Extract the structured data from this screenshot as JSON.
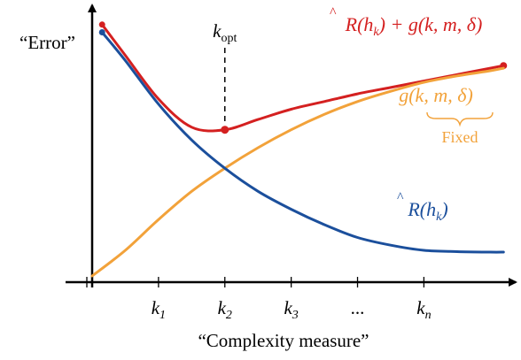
{
  "chart_data": {
    "type": "line",
    "title": "",
    "ylabel": "“Error”",
    "xlabel": "“Complexity measure”",
    "ticks": [
      {
        "base": "k",
        "sub": "1"
      },
      {
        "base": "k",
        "sub": "2"
      },
      {
        "base": "k",
        "sub": "3"
      },
      {
        "base": "...",
        "sub": ""
      },
      {
        "base": "k",
        "sub": "n"
      }
    ],
    "colors": {
      "empirical": "#1b4f9c",
      "penalty": "#f2a23a",
      "total": "#d42020",
      "axis": "#000000"
    },
    "series": [
      {
        "key": "total",
        "name_parts": {
          "hat": "R",
          "rest": "(h",
          "sub": "k",
          "tail": ") + g(k, m, δ)"
        },
        "x": [
          0.15,
          0.5,
          1,
          1.5,
          2,
          2.5,
          3,
          3.5,
          4,
          4.5,
          5,
          5.5,
          6,
          6.2
        ],
        "y": [
          0.98,
          0.86,
          0.69,
          0.58,
          0.57,
          0.61,
          0.65,
          0.68,
          0.71,
          0.735,
          0.76,
          0.785,
          0.81,
          0.82
        ]
      },
      {
        "key": "penalty",
        "name_parts": {
          "text": "g(k, m, δ)"
        },
        "annotation": "Fixed",
        "x": [
          0,
          0.5,
          1,
          1.5,
          2,
          2.5,
          3,
          3.5,
          4,
          4.5,
          5,
          5.5,
          6,
          6.2
        ],
        "y": [
          0.0,
          0.1,
          0.22,
          0.33,
          0.42,
          0.5,
          0.57,
          0.63,
          0.68,
          0.72,
          0.755,
          0.78,
          0.8,
          0.81
        ]
      },
      {
        "key": "empirical",
        "name_parts": {
          "hat": "R",
          "rest": "(h",
          "sub": "k",
          "tail": ")"
        },
        "x": [
          0.15,
          0.5,
          1,
          1.5,
          2,
          2.5,
          3,
          3.5,
          4,
          4.5,
          5,
          5.5,
          6,
          6.2
        ],
        "y": [
          0.95,
          0.84,
          0.67,
          0.53,
          0.42,
          0.33,
          0.26,
          0.2,
          0.15,
          0.12,
          0.1,
          0.095,
          0.093,
          0.093
        ]
      }
    ],
    "optimum": {
      "x": 2,
      "y": 0.57,
      "label_base": "k",
      "label_sub": "opt"
    },
    "xlim": [
      0,
      6.25
    ],
    "ylim": [
      0,
      1.0
    ]
  }
}
